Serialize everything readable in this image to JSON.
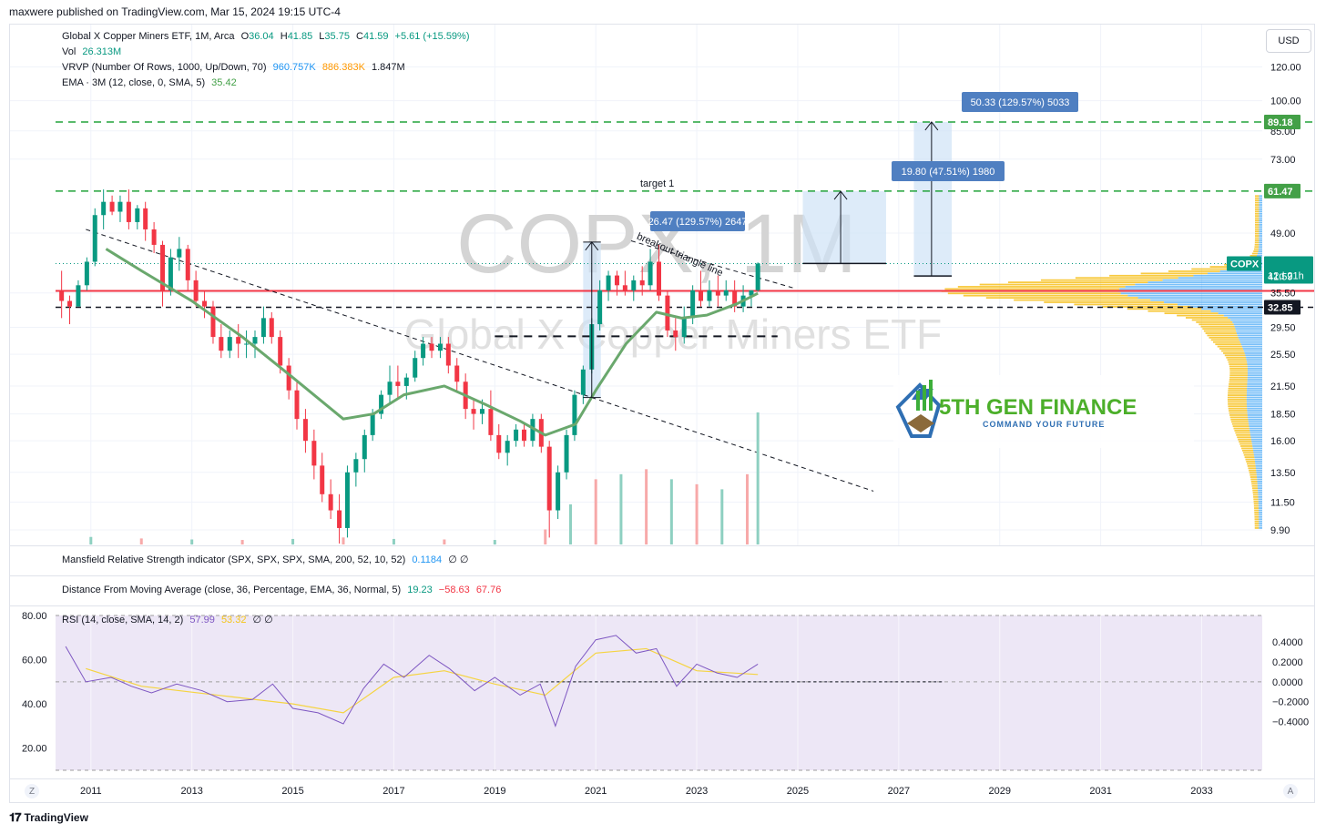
{
  "header": {
    "publisher_line": "maxwere published on TradingView.com, Mar 15, 2024 19:15 UTC-4",
    "currency_button": "USD"
  },
  "legend_main": {
    "title": "Global X Copper Miners ETF, 1M, Arca",
    "o_label": "O",
    "o_value": "36.04",
    "h_label": "H",
    "h_value": "41.85",
    "l_label": "L",
    "l_value": "35.75",
    "c_label": "C",
    "c_value": "41.59",
    "change": "+5.61 (+15.59%)",
    "vol_label": "Vol",
    "vol_value": "26.313M",
    "vrvp_label": "VRVP (Number Of Rows, 1000, Up/Down, 70)",
    "vrvp_up": "960.757K",
    "vrvp_down": "886.383K",
    "vrvp_total": "1.847M",
    "ema_label": "EMA · 3M (12, close, 0, SMA, 5)",
    "ema_value": "35.42"
  },
  "watermark": {
    "symbol": "COPX, 1M",
    "name": "Global X Copper Miners ETF"
  },
  "logo": {
    "name": "5TH GEN FINANCE",
    "tagline": "COMMAND YOUR FUTURE"
  },
  "annotations": {
    "target_label": "target 1",
    "triangle_label": "breakout triangle line",
    "box1": "26.47 (129.57%) 2647",
    "box2": "19.80 (47.51%) 1980",
    "box3": "50.33 (129.57%) 5033"
  },
  "price_badges": {
    "target_high": "89.18",
    "target_low": "61.47",
    "symbol": "COPX",
    "last_price": "41.59",
    "countdown": "12d 21h",
    "support": "32.85"
  },
  "price_axis": [
    "120.00",
    "100.00",
    "85.00",
    "73.00",
    "49.00",
    "35.50",
    "29.50",
    "25.50",
    "21.50",
    "18.50",
    "16.00",
    "13.50",
    "11.50",
    "9.90"
  ],
  "time_axis": [
    "2011",
    "2013",
    "2015",
    "2017",
    "2019",
    "2021",
    "2023",
    "2025",
    "2027",
    "2029",
    "2031",
    "2033"
  ],
  "indicators": {
    "mansfield_label": "Mansfield Relative Strength indicator (SPX, SPX, SPX, SMA, 200, 52, 10, 52)",
    "mansfield_value": "0.1184",
    "mansfield_extra": "∅ ∅",
    "dfma_label": "Distance From Moving Average (close, 36, Percentage, EMA, 36, Normal, 5)",
    "dfma_v1": "19.23",
    "dfma_v2": "−58.63",
    "dfma_v3": "67.76",
    "rsi_label": "RSI (14, close, SMA, 14, 2)",
    "rsi_value": "57.99",
    "rsi_ma": "53.32",
    "rsi_extra": "∅ ∅",
    "rsi_left_axis": [
      "80.00",
      "60.00",
      "40.00",
      "20.00"
    ],
    "rsi_right_axis": [
      "0.4000",
      "0.2000",
      "0.0000",
      "−0.2000",
      "−0.4000"
    ]
  },
  "corners": {
    "left": "Z",
    "right": "A"
  },
  "branding": "TradingView",
  "colors": {
    "up": "#089981",
    "down": "#f23645",
    "ema": "#6aa86d",
    "rsi_line": "#7e57c2",
    "rsi_ma": "#f5d442",
    "rsi_bg": "#ede7f6",
    "target_line": "#22a33a",
    "support_line": "#f23645",
    "box_fill": "#cfe3f7",
    "label_blue": "#4f7fc1",
    "vp_up": "#2196f3",
    "vp_down": "#f5b800"
  },
  "chart_data": {
    "type": "candlestick",
    "title": "Global X Copper Miners ETF, 1M, Arca",
    "y_scale": "log",
    "ylim": [
      9.0,
      130.0
    ],
    "x_range": [
      2010.3,
      2034.2
    ],
    "candles": [
      [
        2010.42,
        36,
        40,
        31,
        34
      ],
      [
        2010.58,
        34,
        35,
        30,
        33
      ],
      [
        2010.75,
        33,
        38,
        33,
        37
      ],
      [
        2010.92,
        37,
        43,
        36,
        42
      ],
      [
        2011.08,
        42,
        56,
        41,
        54
      ],
      [
        2011.25,
        54,
        62,
        50,
        58
      ],
      [
        2011.42,
        58,
        60,
        54,
        55
      ],
      [
        2011.58,
        55,
        60,
        52,
        58
      ],
      [
        2011.75,
        58,
        62,
        50,
        52
      ],
      [
        2011.92,
        52,
        57,
        50,
        56
      ],
      [
        2012.08,
        56,
        58,
        47,
        50
      ],
      [
        2012.25,
        50,
        52,
        44,
        46
      ],
      [
        2012.42,
        46,
        47,
        33,
        36
      ],
      [
        2012.58,
        36,
        45,
        35,
        43
      ],
      [
        2012.75,
        43,
        48,
        40,
        45
      ],
      [
        2012.92,
        45,
        46,
        36,
        38
      ],
      [
        2013.08,
        38,
        40,
        33,
        34
      ],
      [
        2013.25,
        34,
        36,
        31,
        33
      ],
      [
        2013.42,
        33,
        34,
        27,
        28
      ],
      [
        2013.58,
        28,
        30,
        25,
        26
      ],
      [
        2013.75,
        26,
        29,
        25,
        28
      ],
      [
        2013.92,
        28,
        30,
        25,
        27
      ],
      [
        2014.08,
        27,
        29,
        25,
        27
      ],
      [
        2014.25,
        27,
        29,
        25,
        28
      ],
      [
        2014.42,
        28,
        33,
        27,
        31
      ],
      [
        2014.58,
        31,
        32,
        27,
        28
      ],
      [
        2014.75,
        28,
        29,
        23,
        24
      ],
      [
        2014.92,
        24,
        25,
        20,
        21
      ],
      [
        2015.08,
        21,
        22,
        17,
        18
      ],
      [
        2015.25,
        18,
        19,
        15,
        16
      ],
      [
        2015.42,
        16,
        17,
        13,
        14
      ],
      [
        2015.58,
        14,
        15,
        11.5,
        12
      ],
      [
        2015.75,
        12,
        13,
        10.5,
        11
      ],
      [
        2015.92,
        11,
        12,
        9.2,
        10
      ],
      [
        2016.08,
        10,
        14,
        9.5,
        13.5
      ],
      [
        2016.25,
        13.5,
        15,
        12.5,
        14.5
      ],
      [
        2016.42,
        14.5,
        17,
        13.5,
        16.5
      ],
      [
        2016.58,
        16.5,
        19,
        16,
        18.5
      ],
      [
        2016.75,
        18.5,
        21,
        18,
        20.5
      ],
      [
        2016.92,
        20.5,
        24,
        19.5,
        22
      ],
      [
        2017.08,
        22,
        24,
        20,
        21.5
      ],
      [
        2017.25,
        21.5,
        23,
        20,
        22.5
      ],
      [
        2017.42,
        22.5,
        26,
        22,
        25
      ],
      [
        2017.58,
        25,
        28,
        24,
        27
      ],
      [
        2017.75,
        27,
        28,
        25,
        26
      ],
      [
        2017.92,
        26,
        28,
        25,
        27
      ],
      [
        2018.08,
        27,
        28,
        23,
        24
      ],
      [
        2018.25,
        24,
        25,
        21,
        22
      ],
      [
        2018.42,
        22,
        23,
        18,
        19
      ],
      [
        2018.58,
        19,
        20,
        17,
        18.5
      ],
      [
        2018.75,
        18.5,
        20,
        17.5,
        19
      ],
      [
        2018.92,
        19,
        21,
        16,
        16.5
      ],
      [
        2019.08,
        16.5,
        17.5,
        14.5,
        15
      ],
      [
        2019.25,
        15,
        16.5,
        14,
        16
      ],
      [
        2019.42,
        16,
        17.5,
        15.5,
        17
      ],
      [
        2019.58,
        17,
        17.5,
        15.5,
        16
      ],
      [
        2019.75,
        16,
        18.5,
        15.5,
        18
      ],
      [
        2019.92,
        18,
        18.5,
        15,
        15.5
      ],
      [
        2020.08,
        15.5,
        16,
        9.5,
        11
      ],
      [
        2020.25,
        11,
        14,
        10.5,
        13.5
      ],
      [
        2020.42,
        13.5,
        17,
        13,
        16.5
      ],
      [
        2020.58,
        16.5,
        21,
        16,
        20.5
      ],
      [
        2020.75,
        20.5,
        24,
        19.5,
        23.5
      ],
      [
        2020.92,
        23.5,
        31,
        23,
        30
      ],
      [
        2021.08,
        30,
        38,
        29,
        36
      ],
      [
        2021.25,
        36,
        40,
        34,
        39
      ],
      [
        2021.42,
        39,
        40,
        35,
        37
      ],
      [
        2021.58,
        37,
        40,
        35,
        36
      ],
      [
        2021.75,
        36,
        39,
        34,
        38
      ],
      [
        2021.92,
        38,
        41,
        35,
        37
      ],
      [
        2022.08,
        37,
        45,
        36,
        42
      ],
      [
        2022.25,
        42,
        46,
        34,
        35
      ],
      [
        2022.42,
        35,
        36,
        28,
        29
      ],
      [
        2022.58,
        29,
        31,
        26,
        28
      ],
      [
        2022.75,
        28,
        33,
        27,
        31
      ],
      [
        2022.92,
        31,
        37,
        30,
        36
      ],
      [
        2023.08,
        36,
        40,
        33,
        34
      ],
      [
        2023.25,
        34,
        38,
        33,
        36
      ],
      [
        2023.42,
        36,
        39,
        33,
        35
      ],
      [
        2023.58,
        35,
        38,
        34,
        36
      ],
      [
        2023.75,
        36,
        38,
        32,
        33
      ],
      [
        2023.92,
        33,
        37,
        32,
        35
      ],
      [
        2024.08,
        35,
        36,
        33,
        36
      ],
      [
        2024.21,
        36.04,
        41.85,
        35.75,
        41.59
      ]
    ],
    "ema_12": [
      [
        2011.3,
        45
      ],
      [
        2012.0,
        40
      ],
      [
        2013.0,
        34
      ],
      [
        2014.0,
        28
      ],
      [
        2015.0,
        22.5
      ],
      [
        2016.0,
        18
      ],
      [
        2016.6,
        18.5
      ],
      [
        2017.2,
        20.5
      ],
      [
        2018.0,
        21.5
      ],
      [
        2018.8,
        19.5
      ],
      [
        2019.5,
        17.8
      ],
      [
        2020.0,
        16.5
      ],
      [
        2020.6,
        17.5
      ],
      [
        2021.0,
        21
      ],
      [
        2021.6,
        27
      ],
      [
        2022.2,
        32
      ],
      [
        2022.7,
        31
      ],
      [
        2023.2,
        31.5
      ],
      [
        2023.8,
        33.5
      ],
      [
        2024.21,
        35.42
      ]
    ],
    "volume_bars_millions": [
      [
        2011.0,
        1.5
      ],
      [
        2012.0,
        1.2
      ],
      [
        2013.0,
        1.0
      ],
      [
        2014.0,
        0.9
      ],
      [
        2015.0,
        1.1
      ],
      [
        2016.0,
        1.4
      ],
      [
        2017.0,
        1.1
      ],
      [
        2018.0,
        1.0
      ],
      [
        2019.0,
        0.9
      ],
      [
        2020.0,
        3.0
      ],
      [
        2020.5,
        8.0
      ],
      [
        2021.0,
        13.0
      ],
      [
        2021.5,
        14.0
      ],
      [
        2022.0,
        15.0
      ],
      [
        2022.5,
        13.0
      ],
      [
        2023.0,
        12.0
      ],
      [
        2023.5,
        11.0
      ],
      [
        2024.0,
        14.0
      ],
      [
        2024.21,
        26.313
      ]
    ],
    "levels": {
      "target_2": 89.18,
      "target_1": 61.47,
      "support": 32.85,
      "red_line": 35.9,
      "last": 41.59
    },
    "rsi": {
      "ylim": [
        10,
        80
      ],
      "values": [
        [
          2010.5,
          66
        ],
        [
          2010.9,
          50
        ],
        [
          2011.4,
          52
        ],
        [
          2011.8,
          48
        ],
        [
          2012.2,
          45
        ],
        [
          2012.7,
          49
        ],
        [
          2013.2,
          46
        ],
        [
          2013.7,
          41
        ],
        [
          2014.2,
          42
        ],
        [
          2014.6,
          49
        ],
        [
          2015.0,
          38
        ],
        [
          2015.5,
          36
        ],
        [
          2016.0,
          31
        ],
        [
          2016.4,
          47
        ],
        [
          2016.8,
          58
        ],
        [
          2017.2,
          52
        ],
        [
          2017.7,
          62
        ],
        [
          2018.1,
          56
        ],
        [
          2018.6,
          46
        ],
        [
          2019.0,
          52
        ],
        [
          2019.5,
          44
        ],
        [
          2019.9,
          49
        ],
        [
          2020.2,
          30
        ],
        [
          2020.6,
          57
        ],
        [
          2021.0,
          69
        ],
        [
          2021.4,
          71
        ],
        [
          2021.8,
          63
        ],
        [
          2022.2,
          65
        ],
        [
          2022.6,
          48
        ],
        [
          2023.0,
          58
        ],
        [
          2023.4,
          54
        ],
        [
          2023.8,
          52
        ],
        [
          2024.21,
          57.99
        ]
      ],
      "ma": [
        [
          2010.9,
          56
        ],
        [
          2012.0,
          48
        ],
        [
          2013.5,
          44
        ],
        [
          2015.0,
          40
        ],
        [
          2016.0,
          36
        ],
        [
          2017.0,
          52
        ],
        [
          2018.0,
          55
        ],
        [
          2019.0,
          49
        ],
        [
          2020.0,
          44
        ],
        [
          2021.0,
          63
        ],
        [
          2022.0,
          65
        ],
        [
          2023.0,
          55
        ],
        [
          2024.21,
          53.32
        ]
      ]
    }
  }
}
